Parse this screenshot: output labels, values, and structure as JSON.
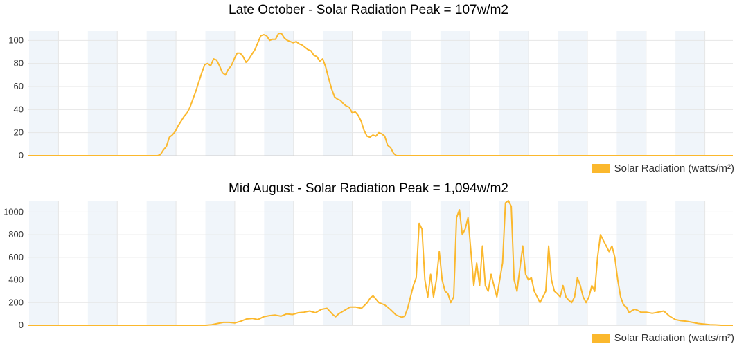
{
  "chart_data": [
    {
      "type": "line",
      "title": "Late October - Solar Radiation Peak = 107w/m2",
      "ylim": [
        0,
        108
      ],
      "yticks": [
        0,
        20,
        40,
        60,
        80,
        100
      ],
      "yticks_labels": [
        "0",
        "20",
        "40",
        "60",
        "80",
        "100"
      ],
      "grid": true,
      "legend": "bottom-right",
      "bands": 12,
      "series": [
        {
          "name": "Solar Radiation (watts/m²)",
          "color": "#fbb82d",
          "points": [
            [
              0,
              0
            ],
            [
              44,
              0
            ],
            [
              45,
              1
            ],
            [
              46,
              5
            ],
            [
              47,
              8
            ],
            [
              48,
              16
            ],
            [
              49,
              18
            ],
            [
              50,
              21
            ],
            [
              51,
              26
            ],
            [
              52,
              30
            ],
            [
              53,
              34
            ],
            [
              54,
              37
            ],
            [
              55,
              42
            ],
            [
              56,
              49
            ],
            [
              57,
              56
            ],
            [
              58,
              64
            ],
            [
              59,
              72
            ],
            [
              60,
              79
            ],
            [
              61,
              80
            ],
            [
              62,
              78
            ],
            [
              63,
              84
            ],
            [
              64,
              83
            ],
            [
              65,
              78
            ],
            [
              66,
              72
            ],
            [
              67,
              70
            ],
            [
              68,
              75
            ],
            [
              69,
              78
            ],
            [
              70,
              84
            ],
            [
              71,
              89
            ],
            [
              72,
              89
            ],
            [
              73,
              86
            ],
            [
              74,
              81
            ],
            [
              75,
              84
            ],
            [
              76,
              88
            ],
            [
              77,
              92
            ],
            [
              78,
              98
            ],
            [
              79,
              104
            ],
            [
              80,
              105
            ],
            [
              81,
              104
            ],
            [
              82,
              100
            ],
            [
              83,
              101
            ],
            [
              84,
              101
            ],
            [
              85,
              106
            ],
            [
              86,
              106
            ],
            [
              87,
              102
            ],
            [
              88,
              100
            ],
            [
              89,
              99
            ],
            [
              90,
              98
            ],
            [
              91,
              99
            ],
            [
              92,
              97
            ],
            [
              93,
              96
            ],
            [
              94,
              94
            ],
            [
              95,
              92
            ],
            [
              96,
              91
            ],
            [
              97,
              87
            ],
            [
              98,
              86
            ],
            [
              99,
              82
            ],
            [
              100,
              84
            ],
            [
              101,
              77
            ],
            [
              102,
              67
            ],
            [
              103,
              58
            ],
            [
              104,
              51
            ],
            [
              105,
              49
            ],
            [
              106,
              48
            ],
            [
              107,
              45
            ],
            [
              108,
              43
            ],
            [
              109,
              42
            ],
            [
              110,
              37
            ],
            [
              111,
              38
            ],
            [
              112,
              35
            ],
            [
              113,
              30
            ],
            [
              114,
              22
            ],
            [
              115,
              17
            ],
            [
              116,
              16
            ],
            [
              117,
              18
            ],
            [
              118,
              17
            ],
            [
              119,
              20
            ],
            [
              120,
              19
            ],
            [
              121,
              17
            ],
            [
              122,
              9
            ],
            [
              123,
              7
            ],
            [
              124,
              2
            ],
            [
              125,
              0
            ],
            [
              239,
              0
            ]
          ]
        }
      ]
    },
    {
      "type": "line",
      "title": "Mid August - Solar Radiation Peak = 1,094w/m2",
      "ylim": [
        0,
        1100
      ],
      "yticks": [
        0,
        200,
        400,
        600,
        800,
        1000
      ],
      "yticks_labels": [
        "0",
        "200",
        "400",
        "600",
        "800",
        "1000"
      ],
      "grid": true,
      "legend": "bottom-right",
      "bands": 12,
      "series": [
        {
          "name": "Solar Radiation (watts/m²)",
          "color": "#fbb82d",
          "points": [
            [
              0,
              0
            ],
            [
              62,
              0
            ],
            [
              64,
              5
            ],
            [
              66,
              15
            ],
            [
              68,
              25
            ],
            [
              70,
              25
            ],
            [
              72,
              20
            ],
            [
              74,
              35
            ],
            [
              76,
              55
            ],
            [
              78,
              60
            ],
            [
              80,
              50
            ],
            [
              82,
              75
            ],
            [
              84,
              85
            ],
            [
              86,
              90
            ],
            [
              88,
              80
            ],
            [
              90,
              100
            ],
            [
              92,
              95
            ],
            [
              94,
              110
            ],
            [
              96,
              115
            ],
            [
              98,
              125
            ],
            [
              100,
              110
            ],
            [
              102,
              140
            ],
            [
              104,
              150
            ],
            [
              106,
              95
            ],
            [
              107,
              75
            ],
            [
              108,
              100
            ],
            [
              110,
              130
            ],
            [
              112,
              160
            ],
            [
              114,
              160
            ],
            [
              116,
              150
            ],
            [
              118,
              200
            ],
            [
              119,
              240
            ],
            [
              120,
              260
            ],
            [
              121,
              230
            ],
            [
              122,
              200
            ],
            [
              124,
              180
            ],
            [
              126,
              140
            ],
            [
              128,
              90
            ],
            [
              130,
              70
            ],
            [
              131,
              80
            ],
            [
              132,
              150
            ],
            [
              134,
              350
            ],
            [
              135,
              420
            ],
            [
              136,
              900
            ],
            [
              137,
              850
            ],
            [
              138,
              400
            ],
            [
              139,
              250
            ],
            [
              140,
              450
            ],
            [
              141,
              250
            ],
            [
              142,
              400
            ],
            [
              143,
              650
            ],
            [
              144,
              400
            ],
            [
              145,
              300
            ],
            [
              146,
              280
            ],
            [
              147,
              200
            ],
            [
              148,
              250
            ],
            [
              149,
              950
            ],
            [
              150,
              1020
            ],
            [
              151,
              800
            ],
            [
              152,
              850
            ],
            [
              153,
              950
            ],
            [
              154,
              650
            ],
            [
              155,
              350
            ],
            [
              156,
              550
            ],
            [
              157,
              350
            ],
            [
              158,
              700
            ],
            [
              159,
              350
            ],
            [
              160,
              300
            ],
            [
              161,
              450
            ],
            [
              162,
              350
            ],
            [
              163,
              250
            ],
            [
              164,
              400
            ],
            [
              165,
              550
            ],
            [
              166,
              1080
            ],
            [
              167,
              1100
            ],
            [
              168,
              1050
            ],
            [
              169,
              400
            ],
            [
              170,
              300
            ],
            [
              171,
              500
            ],
            [
              172,
              700
            ],
            [
              173,
              450
            ],
            [
              174,
              400
            ],
            [
              175,
              420
            ],
            [
              176,
              300
            ],
            [
              177,
              250
            ],
            [
              178,
              200
            ],
            [
              179,
              250
            ],
            [
              180,
              300
            ],
            [
              181,
              700
            ],
            [
              182,
              400
            ],
            [
              183,
              300
            ],
            [
              184,
              280
            ],
            [
              185,
              250
            ],
            [
              186,
              350
            ],
            [
              187,
              250
            ],
            [
              188,
              220
            ],
            [
              189,
              200
            ],
            [
              190,
              250
            ],
            [
              191,
              420
            ],
            [
              192,
              350
            ],
            [
              193,
              250
            ],
            [
              194,
              200
            ],
            [
              195,
              250
            ],
            [
              196,
              350
            ],
            [
              197,
              300
            ],
            [
              198,
              600
            ],
            [
              199,
              800
            ],
            [
              200,
              750
            ],
            [
              201,
              700
            ],
            [
              202,
              650
            ],
            [
              203,
              700
            ],
            [
              204,
              600
            ],
            [
              205,
              400
            ],
            [
              206,
              250
            ],
            [
              207,
              180
            ],
            [
              208,
              160
            ],
            [
              209,
              110
            ],
            [
              210,
              130
            ],
            [
              211,
              140
            ],
            [
              212,
              130
            ],
            [
              213,
              115
            ],
            [
              215,
              115
            ],
            [
              217,
              105
            ],
            [
              219,
              115
            ],
            [
              221,
              125
            ],
            [
              223,
              80
            ],
            [
              225,
              50
            ],
            [
              227,
              40
            ],
            [
              229,
              35
            ],
            [
              231,
              25
            ],
            [
              233,
              15
            ],
            [
              235,
              10
            ],
            [
              237,
              5
            ],
            [
              239,
              3
            ],
            [
              241,
              0
            ],
            [
              245,
              0
            ]
          ]
        }
      ]
    }
  ]
}
